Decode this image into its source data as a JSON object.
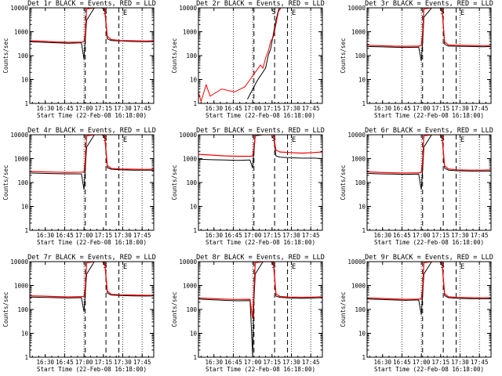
{
  "colors": {
    "events": "#000000",
    "lld": "#ff0000",
    "frame": "#000000"
  },
  "chart_data": [
    {
      "type": "line",
      "title": "Det 1r BLACK = Events, RED = LLD",
      "panel": "1r",
      "markers": [
        "S",
        "E"
      ]
    },
    {
      "type": "line",
      "title": "Det 2r BLACK = Events, RED = LLD",
      "panel": "2r",
      "markers": [
        "S",
        "E"
      ]
    },
    {
      "type": "line",
      "title": "Det 3r BLACK = Events, RED = LLD",
      "panel": "3r",
      "markers": [
        "S",
        "E"
      ]
    },
    {
      "type": "line",
      "title": "Det 4r BLACK = Events, RED = LLD",
      "panel": "4r",
      "markers": [
        "S",
        "E"
      ]
    },
    {
      "type": "line",
      "title": "Det 5r BLACK = Events, RED = LLD",
      "panel": "5r",
      "markers": [
        "S",
        "E"
      ]
    },
    {
      "type": "line",
      "title": "Det 6r BLACK = Events, RED = LLD",
      "panel": "6r",
      "markers": [
        "S",
        "E"
      ]
    },
    {
      "type": "line",
      "title": "Det 7r BLACK = Events, RED = LLD",
      "panel": "7r",
      "markers": [
        "S",
        "E"
      ]
    },
    {
      "type": "line",
      "title": "Det 8r BLACK = Events, RED = LLD",
      "panel": "8r",
      "markers": [
        "S",
        "E"
      ]
    },
    {
      "type": "line",
      "title": "Det 9r BLACK = Events, RED = LLD",
      "panel": "9r",
      "markers": [
        "S",
        "E"
      ]
    }
  ],
  "axes": {
    "xlabel": "Start Time (22-Feb-08 16:18:00)",
    "ylabel": "Counts/sec",
    "xlim": [
      "16:18",
      "17:54"
    ],
    "x_ticks": [
      "16:30",
      "16:45",
      "17:00",
      "17:15",
      "17:30",
      "17:45"
    ],
    "y_scale": "log",
    "ylim": [
      1,
      10000
    ],
    "y_ticks": [
      "1",
      "10",
      "100",
      "1000",
      "10000"
    ],
    "dotted_vlines": [
      "16:45",
      "17:00",
      "17:30",
      "17:45"
    ],
    "dashed_vlines": [
      "17:01",
      "17:17",
      "17:27"
    ]
  },
  "series_profile": {
    "note": "",
    "x_minutes_from_start": [
      0,
      10,
      20,
      30,
      40,
      42,
      43,
      44,
      50,
      52,
      56,
      58,
      60,
      63,
      70,
      80,
      90,
      96
    ]
  },
  "series": [
    {
      "ev": [
        380,
        360,
        345,
        330,
        345,
        70,
        500,
        3000,
        10000,
        10000,
        10000,
        8000,
        500,
        430,
        410,
        390,
        380,
        385
      ],
      "lld": [
        420,
        400,
        375,
        360,
        370,
        380,
        900,
        9000,
        10000,
        10000,
        10000,
        10000,
        650,
        470,
        430,
        420,
        410,
        420
      ]
    },
    {
      "ev": [
        null,
        null,
        null,
        null,
        null,
        null,
        null,
        null,
        null,
        null,
        null,
        null,
        null,
        null,
        null,
        null,
        null,
        null
      ],
      "lld": [
        null,
        null,
        null,
        null,
        null,
        null,
        null,
        null,
        null,
        null,
        null,
        null,
        null,
        null,
        null,
        null,
        null,
        null
      ]
    },
    {
      "ev": [
        240,
        235,
        225,
        220,
        225,
        60,
        350,
        4000,
        10000,
        10000,
        10000,
        9000,
        300,
        250,
        245,
        240,
        235,
        240
      ],
      "lld": [
        270,
        260,
        250,
        245,
        250,
        260,
        900,
        9000,
        10000,
        10000,
        10000,
        10000,
        380,
        280,
        270,
        265,
        260,
        260
      ]
    },
    {
      "ev": [
        250,
        240,
        235,
        230,
        230,
        50,
        420,
        3000,
        10000,
        10000,
        10000,
        8000,
        420,
        360,
        340,
        330,
        330,
        330
      ],
      "lld": [
        290,
        280,
        270,
        265,
        270,
        280,
        900,
        9000,
        10000,
        10000,
        10000,
        10000,
        520,
        390,
        370,
        360,
        350,
        360
      ]
    },
    {
      "ev": [
        950,
        900,
        870,
        840,
        870,
        400,
        2000,
        9000,
        10000,
        10000,
        10000,
        10000,
        1300,
        1150,
        1100,
        1050,
        1050,
        1000
      ],
      "lld": [
        1500,
        1400,
        1300,
        1250,
        1250,
        1300,
        3000,
        10000,
        10000,
        10000,
        10000,
        10000,
        2300,
        1900,
        1800,
        1700,
        1800,
        1900
      ]
    },
    {
      "ev": [
        240,
        230,
        225,
        220,
        225,
        50,
        350,
        3000,
        10000,
        10000,
        10000,
        9000,
        400,
        330,
        310,
        300,
        300,
        300
      ],
      "lld": [
        280,
        265,
        255,
        250,
        255,
        260,
        800,
        9000,
        10000,
        10000,
        10000,
        10000,
        500,
        370,
        340,
        330,
        330,
        340
      ]
    },
    {
      "ev": [
        330,
        320,
        310,
        300,
        310,
        80,
        500,
        3000,
        10000,
        10000,
        10000,
        9000,
        480,
        400,
        380,
        370,
        365,
        370
      ],
      "lld": [
        370,
        360,
        345,
        335,
        345,
        350,
        900,
        9000,
        10000,
        10000,
        10000,
        10000,
        600,
        430,
        410,
        400,
        390,
        390
      ]
    },
    {
      "ev": [
        270,
        255,
        240,
        230,
        235,
        1.2,
        280,
        3000,
        10000,
        10000,
        10000,
        9000,
        360,
        320,
        300,
        290,
        300,
        310
      ],
      "lld": [
        300,
        285,
        270,
        260,
        265,
        40,
        700,
        9000,
        10000,
        10000,
        10000,
        10000,
        450,
        350,
        330,
        320,
        330,
        340
      ]
    },
    {
      "ev": [
        270,
        260,
        250,
        240,
        250,
        60,
        400,
        3000,
        10000,
        10000,
        10000,
        9000,
        380,
        310,
        290,
        280,
        280,
        280
      ],
      "lld": [
        300,
        290,
        275,
        265,
        270,
        280,
        800,
        9000,
        10000,
        10000,
        10000,
        10000,
        460,
        340,
        320,
        310,
        305,
        310
      ]
    }
  ],
  "panel2_traces": {
    "ev_x": [
      38,
      45,
      47,
      52,
      54,
      56,
      58,
      60,
      62,
      63
    ],
    "ev": [
      1.5,
      8,
      12,
      30,
      100,
      200,
      800,
      3000,
      8000,
      10000
    ],
    "lld_x": [
      0,
      2,
      6,
      9,
      18,
      28,
      36,
      40,
      44,
      48,
      50,
      52,
      54,
      56,
      58,
      60,
      62,
      64,
      66
    ],
    "lld": [
      3,
      1.2,
      6,
      2,
      4,
      3,
      5,
      10,
      20,
      40,
      30,
      80,
      150,
      400,
      600,
      2000,
      7000,
      10000,
      10000
    ]
  }
}
